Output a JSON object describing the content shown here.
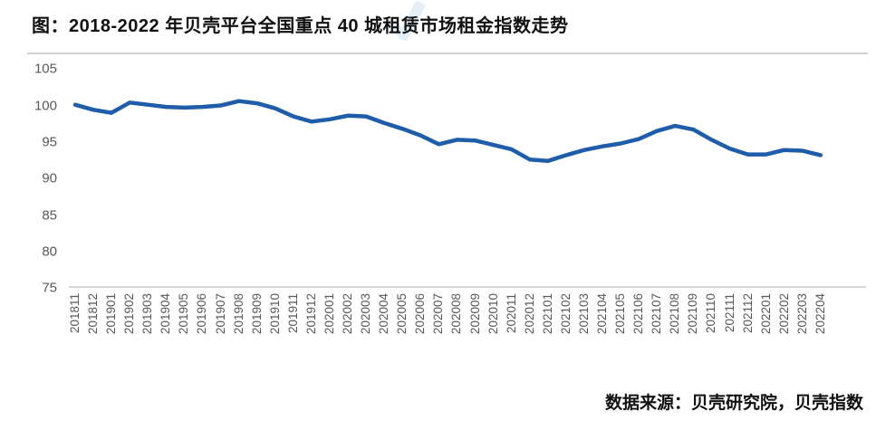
{
  "header": {
    "title": "图：2018-2022 年贝壳平台全国重点 40 城租赁市场租金指数走势"
  },
  "footer": {
    "source": "数据来源：贝壳研究院，贝壳指数"
  },
  "chart_data": {
    "type": "line",
    "title": "图：2018-2022 年贝壳平台全国重点 40 城租赁市场租金指数走势",
    "xlabel": "",
    "ylabel": "",
    "ylim": [
      75,
      105
    ],
    "yticks": [
      105,
      100,
      95,
      90,
      85,
      80,
      75
    ],
    "grid": false,
    "legend": "none",
    "line_color": "#1F5CA9",
    "axis_line_color": "#D9D9D9",
    "tick_label_color": "#595959",
    "categories": [
      "201811",
      "201812",
      "201901",
      "201902",
      "201903",
      "201904",
      "201905",
      "201906",
      "201907",
      "201908",
      "201909",
      "201910",
      "201911",
      "201912",
      "202001",
      "202002",
      "202003",
      "202004",
      "202005",
      "202006",
      "202007",
      "202008",
      "202009",
      "202010",
      "202011",
      "202012",
      "202101",
      "202102",
      "202103",
      "202104",
      "202105",
      "202106",
      "202107",
      "202108",
      "202109",
      "202110",
      "202111",
      "202112",
      "202201",
      "202202",
      "202203",
      "202204"
    ],
    "values": [
      100.1,
      99.4,
      99.0,
      100.4,
      100.1,
      99.8,
      99.7,
      99.8,
      100.0,
      100.6,
      100.3,
      99.6,
      98.5,
      97.8,
      98.1,
      98.6,
      98.5,
      97.6,
      96.8,
      95.9,
      94.7,
      95.3,
      95.2,
      94.6,
      94.0,
      92.6,
      92.4,
      93.2,
      93.9,
      94.4,
      94.8,
      95.4,
      96.5,
      97.2,
      96.7,
      95.3,
      94.1,
      93.3,
      93.3,
      93.9,
      93.8,
      93.2
    ]
  }
}
